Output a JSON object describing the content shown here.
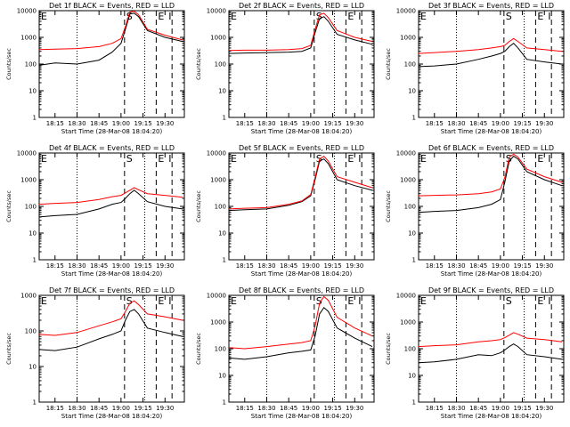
{
  "page": {
    "background": "#ffffff"
  },
  "colors": {
    "events": "#000000",
    "lld": "#ff0000"
  },
  "chart_data": [
    {
      "type": "line",
      "title": "Det 1f BLACK = Events, RED = LLD",
      "xlabel": "Start Time (28-Mar-08 18:04:20)",
      "ylabel": "Counts/sec",
      "xticks": [
        "18:15",
        "18:30",
        "18:45",
        "19:00",
        "19:15",
        "19:30"
      ],
      "yticks": [
        "1",
        "10",
        "100",
        "1000",
        "10000"
      ],
      "ylim": [
        1,
        10000
      ],
      "yscale": "log",
      "markers": [
        "E",
        "S",
        "E",
        "I"
      ],
      "series": [
        {
          "x": [
            18.07,
            18.25,
            18.5,
            18.75,
            18.9,
            19.0,
            19.05,
            19.1,
            19.15,
            19.2,
            19.3,
            19.5,
            19.7
          ],
          "values": [
            90,
            110,
            100,
            140,
            280,
            600,
            2000,
            7500,
            8000,
            6000,
            1800,
            1000,
            700
          ]
        },
        {
          "x": [
            18.07,
            18.25,
            18.5,
            18.75,
            18.9,
            19.0,
            19.05,
            19.1,
            19.15,
            19.2,
            19.3,
            19.5,
            19.7
          ],
          "values": [
            350,
            360,
            380,
            450,
            600,
            900,
            2500,
            9000,
            9500,
            7000,
            2000,
            1200,
            800
          ]
        }
      ]
    },
    {
      "type": "line",
      "title": "Det 2f BLACK = Events, RED = LLD",
      "xlabel": "Start Time (28-Mar-08 18:04:20)",
      "ylabel": "Counts/sec",
      "xticks": [
        "18:15",
        "18:30",
        "18:45",
        "19:00",
        "19:15",
        "19:30"
      ],
      "yticks": [
        "1",
        "10",
        "100",
        "1000",
        "10000"
      ],
      "ylim": [
        1,
        10000
      ],
      "yscale": "log",
      "markers": [
        "E",
        "S",
        "E",
        "I"
      ],
      "series": [
        {
          "x": [
            18.07,
            18.25,
            18.5,
            18.75,
            18.9,
            19.0,
            19.05,
            19.1,
            19.15,
            19.2,
            19.3,
            19.5,
            19.7
          ],
          "values": [
            250,
            260,
            270,
            280,
            300,
            400,
            1500,
            5000,
            6000,
            4000,
            1300,
            800,
            550
          ]
        },
        {
          "x": [
            18.07,
            18.25,
            18.5,
            18.75,
            18.9,
            19.0,
            19.05,
            19.1,
            19.15,
            19.2,
            19.3,
            19.5,
            19.7
          ],
          "values": [
            320,
            330,
            330,
            350,
            380,
            500,
            2000,
            7000,
            8000,
            5500,
            1800,
            1000,
            700
          ]
        }
      ]
    },
    {
      "type": "line",
      "title": "Det 3f BLACK = Events, RED = LLD",
      "xlabel": "Start Time (28-Mar-08 18:04:20)",
      "ylabel": "Counts/sec",
      "xticks": [
        "18:15",
        "18:30",
        "18:45",
        "19:00",
        "19:15",
        "19:30"
      ],
      "yticks": [
        "1",
        "10",
        "100",
        "1000",
        "10000"
      ],
      "ylim": [
        1,
        10000
      ],
      "yscale": "log",
      "markers": [
        "E",
        "S",
        "E",
        "I"
      ],
      "series": [
        {
          "x": [
            18.07,
            18.25,
            18.5,
            18.75,
            18.9,
            19.0,
            19.05,
            19.1,
            19.15,
            19.2,
            19.3,
            19.5,
            19.7
          ],
          "values": [
            80,
            85,
            100,
            150,
            200,
            250,
            300,
            450,
            600,
            400,
            150,
            120,
            100
          ]
        },
        {
          "x": [
            18.07,
            18.25,
            18.5,
            18.75,
            18.9,
            19.0,
            19.05,
            19.1,
            19.15,
            19.2,
            19.3,
            19.5,
            19.7
          ],
          "values": [
            250,
            270,
            300,
            350,
            400,
            450,
            500,
            700,
            900,
            700,
            400,
            350,
            300
          ]
        }
      ]
    },
    {
      "type": "line",
      "title": "Det 4f BLACK = Events, RED = LLD",
      "xlabel": "Start Time (28-Mar-08 18:04:20)",
      "ylabel": "Counts/sec",
      "xticks": [
        "18:15",
        "18:30",
        "18:45",
        "19:00",
        "19:15",
        "19:30"
      ],
      "yticks": [
        "1",
        "10",
        "100",
        "1000",
        "10000"
      ],
      "ylim": [
        1,
        10000
      ],
      "yscale": "log",
      "markers": [
        "E",
        "S",
        "E",
        "I"
      ],
      "series": [
        {
          "x": [
            18.07,
            18.25,
            18.5,
            18.75,
            18.9,
            19.0,
            19.05,
            19.1,
            19.15,
            19.2,
            19.3,
            19.5,
            19.7
          ],
          "values": [
            40,
            45,
            50,
            80,
            120,
            140,
            200,
            300,
            400,
            300,
            150,
            100,
            80
          ]
        },
        {
          "x": [
            18.07,
            18.25,
            18.5,
            18.75,
            18.9,
            19.0,
            19.05,
            19.1,
            19.15,
            19.2,
            19.3,
            19.5,
            19.7
          ],
          "values": [
            120,
            130,
            140,
            180,
            230,
            260,
            320,
            400,
            500,
            420,
            300,
            260,
            220
          ]
        }
      ]
    },
    {
      "type": "line",
      "title": "Det 5f BLACK = Events, RED = LLD",
      "xlabel": "Start Time (28-Mar-08 18:04:20)",
      "ylabel": "Counts/sec",
      "xticks": [
        "18:15",
        "18:30",
        "18:45",
        "19:00",
        "19:15",
        "19:30"
      ],
      "yticks": [
        "1",
        "10",
        "100",
        "1000",
        "10000"
      ],
      "ylim": [
        1,
        10000
      ],
      "yscale": "log",
      "markers": [
        "E",
        "S",
        "E",
        "I"
      ],
      "series": [
        {
          "x": [
            18.07,
            18.25,
            18.5,
            18.75,
            18.9,
            19.0,
            19.05,
            19.1,
            19.15,
            19.2,
            19.3,
            19.5,
            19.7
          ],
          "values": [
            70,
            75,
            80,
            110,
            150,
            250,
            1000,
            5000,
            6000,
            4000,
            1000,
            600,
            400
          ]
        },
        {
          "x": [
            18.07,
            18.25,
            18.5,
            18.75,
            18.9,
            19.0,
            19.05,
            19.1,
            19.15,
            19.2,
            19.3,
            19.5,
            19.7
          ],
          "values": [
            80,
            85,
            90,
            120,
            160,
            280,
            1200,
            6000,
            7500,
            5000,
            1300,
            800,
            500
          ]
        }
      ]
    },
    {
      "type": "line",
      "title": "Det 6f BLACK = Events, RED = LLD",
      "xlabel": "Start Time (28-Mar-08 18:04:20)",
      "ylabel": "Counts/sec",
      "xticks": [
        "18:15",
        "18:30",
        "18:45",
        "19:00",
        "19:15",
        "19:30"
      ],
      "yticks": [
        "1",
        "10",
        "100",
        "1000",
        "10000"
      ],
      "ylim": [
        1,
        10000
      ],
      "yscale": "log",
      "markers": [
        "E",
        "S",
        "E",
        "I"
      ],
      "series": [
        {
          "x": [
            18.07,
            18.25,
            18.5,
            18.75,
            18.9,
            19.0,
            19.05,
            19.1,
            19.15,
            19.2,
            19.3,
            19.5,
            19.7
          ],
          "values": [
            60,
            65,
            70,
            90,
            120,
            180,
            800,
            5000,
            7500,
            6000,
            2000,
            1000,
            600
          ]
        },
        {
          "x": [
            18.07,
            18.25,
            18.5,
            18.75,
            18.9,
            19.0,
            19.05,
            19.1,
            19.15,
            19.2,
            19.3,
            19.5,
            19.7
          ],
          "values": [
            250,
            260,
            270,
            300,
            350,
            450,
            1200,
            7000,
            9000,
            7000,
            2500,
            1300,
            800
          ]
        }
      ]
    },
    {
      "type": "line",
      "title": "Det 7f BLACK = Events, RED = LLD",
      "xlabel": "Start Time (28-Mar-08 18:04:20)",
      "ylabel": "Counts/sec",
      "xticks": [
        "18:15",
        "18:30",
        "18:45",
        "19:00",
        "19:15",
        "19:30"
      ],
      "yticks": [
        "1",
        "10",
        "100",
        "1000"
      ],
      "ylim": [
        1,
        1000
      ],
      "yscale": "log",
      "markers": [
        "E",
        "S",
        "E",
        "I"
      ],
      "series": [
        {
          "x": [
            18.07,
            18.25,
            18.5,
            18.75,
            18.9,
            19.0,
            19.05,
            19.1,
            19.15,
            19.2,
            19.3,
            19.5,
            19.7
          ],
          "values": [
            30,
            28,
            35,
            60,
            80,
            100,
            200,
            350,
            400,
            300,
            120,
            90,
            70
          ]
        },
        {
          "x": [
            18.07,
            18.25,
            18.5,
            18.75,
            18.9,
            19.0,
            19.05,
            19.1,
            19.15,
            19.2,
            19.3,
            19.5,
            19.7
          ],
          "values": [
            80,
            75,
            90,
            140,
            180,
            220,
            350,
            600,
            700,
            550,
            300,
            250,
            200
          ]
        }
      ]
    },
    {
      "type": "line",
      "title": "Det 8f BLACK = Events, RED = LLD",
      "xlabel": "Start Time (28-Mar-08 18:04:20)",
      "ylabel": "Counts/sec",
      "xticks": [
        "18:15",
        "18:30",
        "18:45",
        "19:00",
        "19:15",
        "19:30"
      ],
      "yticks": [
        "1",
        "10",
        "100",
        "1000",
        "10000"
      ],
      "ylim": [
        1,
        10000
      ],
      "yscale": "log",
      "markers": [
        "E",
        "S",
        "E",
        "I"
      ],
      "series": [
        {
          "x": [
            18.07,
            18.25,
            18.5,
            18.75,
            18.9,
            19.0,
            19.05,
            19.1,
            19.15,
            19.2,
            19.3,
            19.5,
            19.7
          ],
          "values": [
            45,
            40,
            50,
            70,
            80,
            90,
            300,
            2000,
            3500,
            2500,
            600,
            250,
            120
          ]
        },
        {
          "x": [
            18.07,
            18.25,
            18.5,
            18.75,
            18.9,
            19.0,
            19.05,
            19.1,
            19.15,
            19.2,
            19.3,
            19.5,
            19.7
          ],
          "values": [
            110,
            100,
            120,
            150,
            170,
            200,
            700,
            5000,
            9000,
            6500,
            1500,
            600,
            300
          ]
        }
      ]
    },
    {
      "type": "line",
      "title": "Det 9f BLACK = Events, RED = LLD",
      "xlabel": "Start Time (28-Mar-08 18:04:20)",
      "ylabel": "Counts/sec",
      "xticks": [
        "18:15",
        "18:30",
        "18:45",
        "19:00",
        "19:15",
        "19:30"
      ],
      "yticks": [
        "1",
        "10",
        "100",
        "1000",
        "10000"
      ],
      "ylim": [
        1,
        10000
      ],
      "yscale": "log",
      "markers": [
        "E",
        "S",
        "E",
        "I"
      ],
      "series": [
        {
          "x": [
            18.07,
            18.25,
            18.5,
            18.75,
            18.9,
            19.0,
            19.05,
            19.1,
            19.15,
            19.2,
            19.3,
            19.5,
            19.7
          ],
          "values": [
            30,
            32,
            40,
            60,
            55,
            70,
            90,
            120,
            150,
            120,
            60,
            50,
            40
          ]
        },
        {
          "x": [
            18.07,
            18.25,
            18.5,
            18.75,
            18.9,
            19.0,
            19.05,
            19.1,
            19.15,
            19.2,
            19.3,
            19.5,
            19.7
          ],
          "values": [
            120,
            130,
            140,
            180,
            200,
            220,
            260,
            320,
            400,
            350,
            250,
            220,
            180
          ]
        }
      ]
    }
  ]
}
